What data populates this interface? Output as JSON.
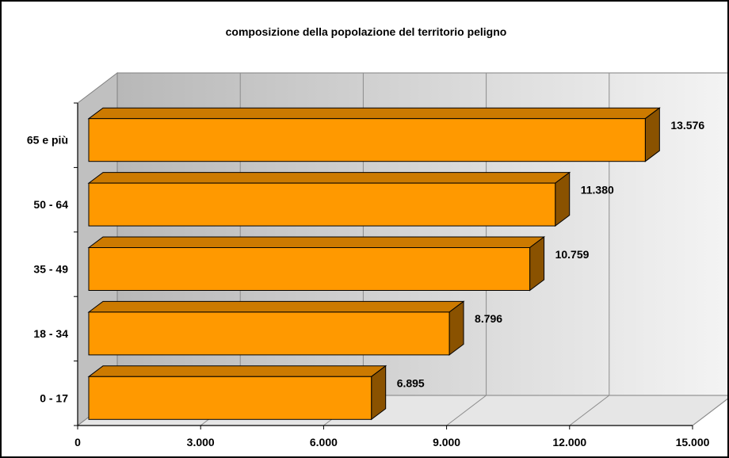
{
  "chart_data": {
    "type": "bar",
    "orientation": "horizontal",
    "title": "composizione della popolazione del territorio peligno",
    "categories": [
      "65 e più",
      "50 - 64",
      "35 - 49",
      "18 - 34",
      "0 - 17"
    ],
    "values": [
      13576,
      11380,
      10759,
      8796,
      6895
    ],
    "value_labels": [
      "13.576",
      "11.380",
      "10.759",
      "8.796",
      "6.895"
    ],
    "x_ticks": [
      0,
      3000,
      6000,
      9000,
      12000,
      15000
    ],
    "x_tick_labels": [
      "0",
      "3.000",
      "6.000",
      "9.000",
      "12.000",
      "15.000"
    ],
    "xlim": [
      0,
      15000
    ],
    "xlabel": "",
    "ylabel": "",
    "grid": true,
    "legend": "none",
    "colors": {
      "bar_front": "#FF9900",
      "bar_top": "#CC7A00",
      "bar_side": "#8A5200",
      "wall": "#C0C0C0",
      "floor": "#E6E6E6"
    }
  }
}
